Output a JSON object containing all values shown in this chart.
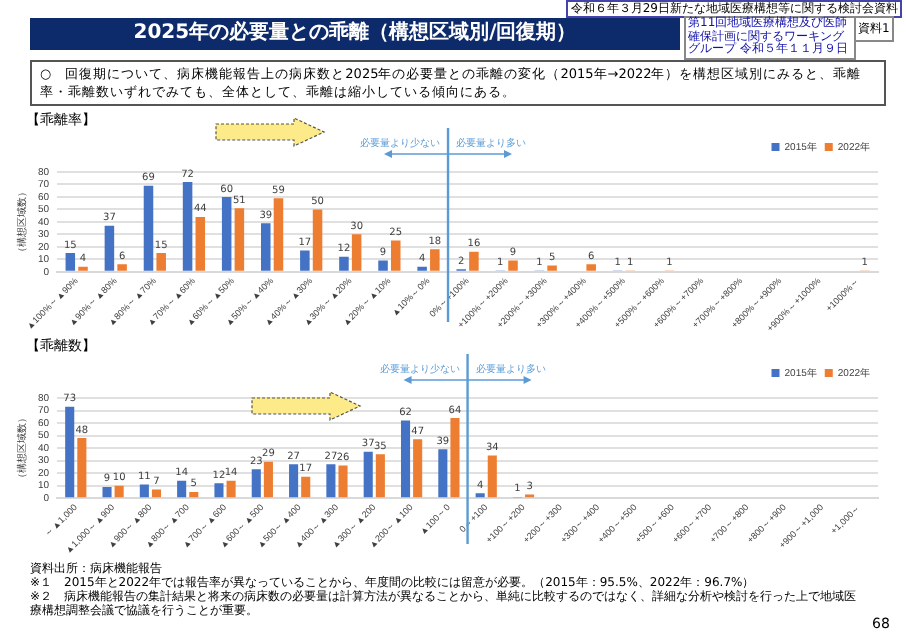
{
  "chart_data": [
    {
      "type": "bar",
      "title": "【乖離率】",
      "ylabel": "（構想区域数）",
      "categories": [
        "▲100%～▲90%",
        "▲90%～▲80%",
        "▲80%～▲70%",
        "▲70%～▲60%",
        "▲60%～▲50%",
        "▲50%～▲40%",
        "▲40%～▲30%",
        "▲30%～▲20%",
        "▲20%～▲10%",
        "▲10%～0%",
        "0%～+100%",
        "+100%～+200%",
        "+200%～+300%",
        "+300%～+400%",
        "+400%～+500%",
        "+500%～+600%",
        "+600%～+700%",
        "+700%～+800%",
        "+800%～+900%",
        "+900%～+1000%",
        "+1000%～"
      ],
      "series": [
        {
          "name": "2015年",
          "color": "#4472c4",
          "values": [
            15,
            37,
            69,
            72,
            60,
            39,
            17,
            12,
            9,
            4,
            2,
            1,
            1,
            null,
            1,
            null,
            null,
            null,
            null,
            null,
            null
          ]
        },
        {
          "name": "2022年",
          "color": "#ed7d31",
          "values": [
            4,
            6,
            15,
            44,
            51,
            59,
            50,
            30,
            25,
            18,
            16,
            9,
            5,
            6,
            1,
            1,
            null,
            null,
            null,
            null,
            1
          ]
        }
      ],
      "ylim": [
        0,
        80
      ],
      "yticks": [
        0,
        10,
        20,
        30,
        40,
        50,
        60,
        70,
        80
      ],
      "grid": "y",
      "legend": "top right",
      "data_labels": true,
      "ref_lines": [
        {
          "axis": "x",
          "value": "0%～+100%",
          "color": "#5b9bd5"
        }
      ],
      "annotations": [
        "2025年の必要量との乖離（構想区域別/回復期）",
        "令和６年３月29日新たな地域医療構想等に関する検討会資料",
        "第11回地域医療構想及び医師確保計画に関するワーキンググループ 令和５年１１月９日",
        "資料1",
        "○　回復期について、病床機能報告上の病床数と2025年の必要量との乖離の変化（2015年→2022年）を構想区域別にみると、乖離率・乖離数いずれでみても、全体として、乖離は縮小している傾向にある。",
        "必要量より少ない",
        "必要量より多い"
      ]
    },
    {
      "type": "bar",
      "title": "【乖離数】",
      "ylabel": "（構想区域数）",
      "categories": [
        "～▲1,000",
        "▲1,000～▲900",
        "▲900～▲800",
        "▲800～▲700",
        "▲700～▲600",
        "▲600～▲500",
        "▲500～▲400",
        "▲400～▲300",
        "▲300～▲200",
        "▲200～▲100",
        "▲100～0",
        "0～+100",
        "+100～+200",
        "+200～+300",
        "+300～+400",
        "+400～+500",
        "+500～+600",
        "+600～+700",
        "+700～+800",
        "+800～+900",
        "+900～+1,000",
        "+1,000～"
      ],
      "series": [
        {
          "name": "2015年",
          "color": "#4472c4",
          "values": [
            73,
            9,
            11,
            14,
            12,
            23,
            27,
            27,
            37,
            62,
            39,
            4,
            1,
            null,
            null,
            null,
            null,
            null,
            null,
            null,
            null,
            null
          ]
        },
        {
          "name": "2022年",
          "color": "#ed7d31",
          "values": [
            48,
            10,
            7,
            5,
            14,
            29,
            17,
            26,
            35,
            47,
            64,
            34,
            3,
            null,
            null,
            null,
            null,
            null,
            null,
            null,
            null,
            null
          ]
        }
      ],
      "ylim": [
        0,
        80
      ],
      "yticks": [
        0,
        10,
        20,
        30,
        40,
        50,
        60,
        70,
        80
      ],
      "grid": "y",
      "legend": "top right",
      "data_labels": true,
      "ref_lines": [
        {
          "axis": "x",
          "value": "0～+100",
          "color": "#5b9bd5"
        }
      ],
      "annotations": [
        "必要量より少ない",
        "必要量より多い",
        "資料出所：病床機能報告",
        "※１　2015年と2022年では報告率が異なっていることから、年度間の比較には留意が必要。（2015年：95.5%、2022年：96.7%）",
        "※２　病床機能報告の集計結果と将来の病床数の必要量は計算方法が異なることから、単純に比較するのではなく、詳細な分析や検討を行った上で地域医療構想調整会議で協議を行うことが重要。",
        "68"
      ]
    }
  ]
}
